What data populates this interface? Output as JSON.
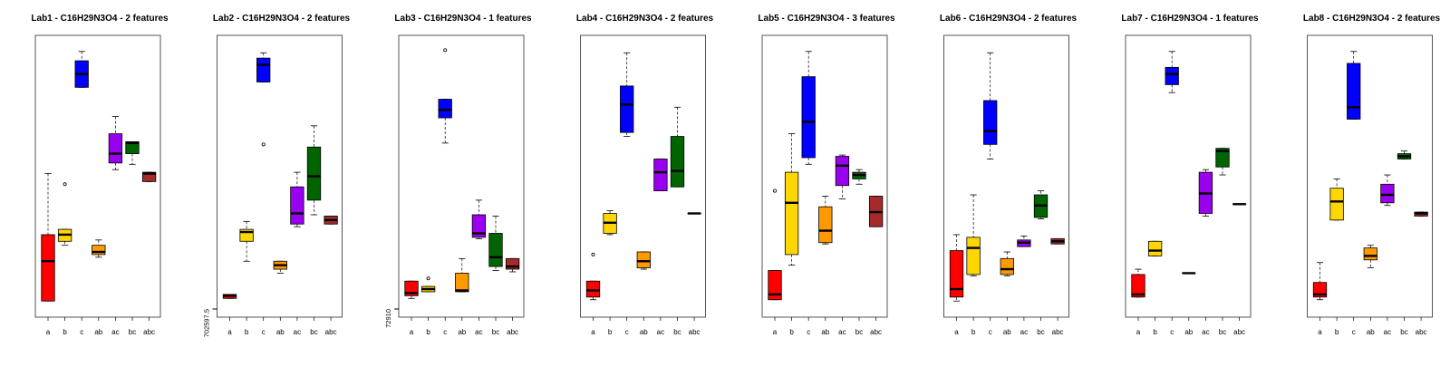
{
  "colors": {
    "a": "#ff0000",
    "b": "#ffd700",
    "c": "#0000ff",
    "ab": "#ff9900",
    "ac": "#9900ee",
    "bc": "#006400",
    "abc": "#a52a2a"
  },
  "chart_data": [
    {
      "type": "boxplot",
      "title": "Lab1 - C16H29N3O4 - 2 features",
      "categories": [
        "a",
        "b",
        "c",
        "ab",
        "ac",
        "bc",
        "abc"
      ],
      "ylim": [
        0,
        100
      ],
      "yticks": [],
      "boxes": [
        {
          "group": "a",
          "min": 3,
          "q1": 3,
          "median": 18,
          "q3": 28,
          "max": 51,
          "outliers": []
        },
        {
          "group": "b",
          "min": 24,
          "q1": 25.5,
          "median": 28,
          "q3": 30,
          "max": 30,
          "outliers": [
            47
          ]
        },
        {
          "group": "c",
          "min": 83.5,
          "q1": 83.5,
          "median": 88.5,
          "q3": 93.5,
          "max": 97,
          "outliers": []
        },
        {
          "group": "ab",
          "min": 19.5,
          "q1": 20.5,
          "median": 21.5,
          "q3": 24,
          "max": 26,
          "outliers": []
        },
        {
          "group": "ac",
          "min": 52.5,
          "q1": 55,
          "median": 58.5,
          "q3": 66,
          "max": 72.5,
          "outliers": []
        },
        {
          "group": "bc",
          "min": 54.5,
          "q1": 58.5,
          "median": 62.5,
          "q3": 63,
          "max": 63,
          "outliers": []
        },
        {
          "group": "abc",
          "min": 48,
          "q1": 48,
          "median": 51,
          "q3": 51.5,
          "max": 51.5,
          "outliers": []
        }
      ]
    },
    {
      "type": "boxplot",
      "title": "Lab2 - C16H29N3O4 - 2 features",
      "categories": [
        "a",
        "b",
        "c",
        "ab",
        "ac",
        "bc",
        "abc"
      ],
      "ylim": [
        702597.5,
        702697.5
      ],
      "yticks": [
        {
          "value": 702597.5,
          "label": "702597.5"
        }
      ],
      "boxes": [
        {
          "group": "a",
          "min": 702601.5,
          "q1": 702601.5,
          "median": 702602.5,
          "q3": 702603,
          "max": 702603,
          "outliers": []
        },
        {
          "group": "b",
          "min": 702615.5,
          "q1": 702623,
          "median": 702626.5,
          "q3": 702627.5,
          "max": 702630.5,
          "outliers": []
        },
        {
          "group": "c",
          "min": 702683,
          "q1": 702683,
          "median": 702689.5,
          "q3": 702692,
          "max": 702694,
          "outliers": [
            702659.5
          ]
        },
        {
          "group": "ab",
          "min": 702611,
          "q1": 702612.5,
          "median": 702614,
          "q3": 702615.5,
          "max": 702615.5,
          "outliers": []
        },
        {
          "group": "ac",
          "min": 702628.5,
          "q1": 702629.5,
          "median": 702633.5,
          "q3": 702643.5,
          "max": 702649,
          "outliers": []
        },
        {
          "group": "bc",
          "min": 702633,
          "q1": 702638.5,
          "median": 702647.5,
          "q3": 702658.5,
          "max": 702666.5,
          "outliers": []
        },
        {
          "group": "abc",
          "min": 702629.5,
          "q1": 702629.5,
          "median": 702631,
          "q3": 702632.5,
          "max": 702632.5,
          "outliers": []
        }
      ]
    },
    {
      "type": "boxplot",
      "title": "Lab3 - C16H29N3O4 - 1 features",
      "categories": [
        "a",
        "b",
        "c",
        "ab",
        "ac",
        "bc",
        "abc"
      ],
      "ylim": [
        72910,
        73010
      ],
      "yticks": [
        {
          "value": 72910,
          "label": "72910"
        }
      ],
      "boxes": [
        {
          "group": "a",
          "min": 72914,
          "q1": 72915,
          "median": 72916,
          "q3": 72920.5,
          "max": 72920.5,
          "outliers": []
        },
        {
          "group": "b",
          "min": 72916.5,
          "q1": 72916.5,
          "median": 72917.5,
          "q3": 72918.5,
          "max": 72918.5,
          "outliers": [
            72921.5
          ]
        },
        {
          "group": "c",
          "min": 72972.5,
          "q1": 72982,
          "median": 72985,
          "q3": 72989,
          "max": 72989,
          "outliers": [
            73007.5
          ]
        },
        {
          "group": "ab",
          "min": 72916.5,
          "q1": 72916.5,
          "median": 72917,
          "q3": 72923.5,
          "max": 72929,
          "outliers": []
        },
        {
          "group": "ac",
          "min": 72936.5,
          "q1": 72937,
          "median": 72938.5,
          "q3": 72945.5,
          "max": 72951,
          "outliers": []
        },
        {
          "group": "bc",
          "min": 72924.5,
          "q1": 72926,
          "median": 72929.5,
          "q3": 72938.5,
          "max": 72945,
          "outliers": []
        },
        {
          "group": "abc",
          "min": 72924,
          "q1": 72925,
          "median": 72926,
          "q3": 72929,
          "max": 72929,
          "outliers": []
        }
      ]
    },
    {
      "type": "boxplot",
      "title": "Lab4 - C16H29N3O4 - 2 features",
      "categories": [
        "a",
        "b",
        "c",
        "ab",
        "ac",
        "bc",
        "abc"
      ],
      "ylim": [
        0,
        100
      ],
      "yticks": [],
      "boxes": [
        {
          "group": "a",
          "min": 3.5,
          "q1": 4.5,
          "median": 7,
          "q3": 10.5,
          "max": 10.5,
          "outliers": [
            20.5
          ]
        },
        {
          "group": "b",
          "min": 28,
          "q1": 28.5,
          "median": 32.5,
          "q3": 36,
          "max": 37,
          "outliers": []
        },
        {
          "group": "c",
          "min": 65,
          "q1": 66.5,
          "median": 77,
          "q3": 84,
          "max": 96.5,
          "outliers": []
        },
        {
          "group": "ab",
          "min": 15,
          "q1": 15.5,
          "median": 18,
          "q3": 21.5,
          "max": 21.5,
          "outliers": []
        },
        {
          "group": "ac",
          "min": 44.5,
          "q1": 44.5,
          "median": 51.5,
          "q3": 56.5,
          "max": 56.5,
          "outliers": []
        },
        {
          "group": "bc",
          "min": 46,
          "q1": 46,
          "median": 52,
          "q3": 65,
          "max": 76,
          "outliers": []
        },
        {
          "group": "abc",
          "min": 36,
          "q1": 36,
          "median": 36,
          "q3": 36,
          "max": 36,
          "outliers": []
        }
      ]
    },
    {
      "type": "boxplot",
      "title": "Lab5 - C16H29N3O4 - 3 features",
      "categories": [
        "a",
        "b",
        "c",
        "ab",
        "ac",
        "bc",
        "abc"
      ],
      "ylim": [
        0,
        100
      ],
      "yticks": [],
      "boxes": [
        {
          "group": "a",
          "min": 3.5,
          "q1": 3.5,
          "median": 5.5,
          "q3": 14.5,
          "max": 14.5,
          "outliers": [
            44.5
          ]
        },
        {
          "group": "b",
          "min": 16.5,
          "q1": 20.5,
          "median": 40,
          "q3": 51.5,
          "max": 66,
          "outliers": []
        },
        {
          "group": "c",
          "min": 54.5,
          "q1": 57,
          "median": 70.5,
          "q3": 87.5,
          "max": 97,
          "outliers": []
        },
        {
          "group": "ab",
          "min": 24.5,
          "q1": 25,
          "median": 29.5,
          "q3": 38.5,
          "max": 42.5,
          "outliers": []
        },
        {
          "group": "ac",
          "min": 41.5,
          "q1": 46.5,
          "median": 54,
          "q3": 57.5,
          "max": 58,
          "outliers": []
        },
        {
          "group": "bc",
          "min": 47,
          "q1": 49,
          "median": 50.5,
          "q3": 51.5,
          "max": 52.5,
          "outliers": []
        },
        {
          "group": "abc",
          "min": 31,
          "q1": 31,
          "median": 36.5,
          "q3": 42.5,
          "max": 42.5,
          "outliers": []
        }
      ]
    },
    {
      "type": "boxplot",
      "title": "Lab6 - C16H29N3O4 - 2 features",
      "categories": [
        "a",
        "b",
        "c",
        "ab",
        "ac",
        "bc",
        "abc"
      ],
      "ylim": [
        0,
        100
      ],
      "yticks": [],
      "boxes": [
        {
          "group": "a",
          "min": 3,
          "q1": 4.5,
          "median": 7.5,
          "q3": 22,
          "max": 28,
          "outliers": []
        },
        {
          "group": "b",
          "min": 12.5,
          "q1": 13,
          "median": 23,
          "q3": 27,
          "max": 43,
          "outliers": []
        },
        {
          "group": "c",
          "min": 56.5,
          "q1": 62,
          "median": 67,
          "q3": 78.5,
          "max": 96.5,
          "outliers": []
        },
        {
          "group": "ab",
          "min": 12.5,
          "q1": 13,
          "median": 15,
          "q3": 19,
          "max": 21.5,
          "outliers": []
        },
        {
          "group": "ac",
          "min": 23.5,
          "q1": 23.5,
          "median": 25,
          "q3": 26,
          "max": 27.5,
          "outliers": []
        },
        {
          "group": "bc",
          "min": 34,
          "q1": 34.5,
          "median": 39,
          "q3": 43,
          "max": 44.5,
          "outliers": []
        },
        {
          "group": "abc",
          "min": 24.5,
          "q1": 24.5,
          "median": 25.5,
          "q3": 26.5,
          "max": 26.5,
          "outliers": []
        }
      ]
    },
    {
      "type": "boxplot",
      "title": "Lab7 - C16H29N3O4 - 1 features",
      "categories": [
        "a",
        "b",
        "c",
        "ab",
        "ac",
        "bc",
        "abc"
      ],
      "ylim": [
        0,
        100
      ],
      "yticks": [],
      "boxes": [
        {
          "group": "a",
          "min": 4.5,
          "q1": 4.5,
          "median": 5.5,
          "q3": 13,
          "max": 15,
          "outliers": []
        },
        {
          "group": "b",
          "min": 20,
          "q1": 20,
          "median": 22,
          "q3": 25.5,
          "max": 25.5,
          "outliers": []
        },
        {
          "group": "c",
          "min": 81.5,
          "q1": 84.5,
          "median": 88.5,
          "q3": 91,
          "max": 97,
          "outliers": []
        },
        {
          "group": "ab",
          "min": 13.5,
          "q1": 13.5,
          "median": 13.5,
          "q3": 13.5,
          "max": 13.5,
          "outliers": []
        },
        {
          "group": "ac",
          "min": 35,
          "q1": 36,
          "median": 43.5,
          "q3": 51.5,
          "max": 52.5,
          "outliers": []
        },
        {
          "group": "bc",
          "min": 50.5,
          "q1": 53.5,
          "median": 59.5,
          "q3": 60.5,
          "max": 60.5,
          "outliers": []
        },
        {
          "group": "abc",
          "min": 39.5,
          "q1": 39.5,
          "median": 39.5,
          "q3": 39.5,
          "max": 39.5,
          "outliers": []
        }
      ]
    },
    {
      "type": "boxplot",
      "title": "Lab8 - C16H29N3O4 - 2 features",
      "categories": [
        "a",
        "b",
        "c",
        "ab",
        "ac",
        "bc",
        "abc"
      ],
      "ylim": [
        0,
        100
      ],
      "yticks": [],
      "boxes": [
        {
          "group": "a",
          "min": 3.5,
          "q1": 4.5,
          "median": 5.5,
          "q3": 10,
          "max": 17.5,
          "outliers": []
        },
        {
          "group": "b",
          "min": 33.5,
          "q1": 33.5,
          "median": 40.5,
          "q3": 45.5,
          "max": 49,
          "outliers": []
        },
        {
          "group": "c",
          "min": 71.5,
          "q1": 71.5,
          "median": 76,
          "q3": 92.5,
          "max": 97,
          "outliers": []
        },
        {
          "group": "ab",
          "min": 15.5,
          "q1": 18.5,
          "median": 20,
          "q3": 23,
          "max": 24,
          "outliers": []
        },
        {
          "group": "ac",
          "min": 39,
          "q1": 40,
          "median": 43,
          "q3": 47,
          "max": 50.5,
          "outliers": []
        },
        {
          "group": "bc",
          "min": 56.5,
          "q1": 56.5,
          "median": 57.5,
          "q3": 58.5,
          "max": 59.5,
          "outliers": []
        },
        {
          "group": "abc",
          "min": 35,
          "q1": 35,
          "median": 36,
          "q3": 36.5,
          "max": 36.5,
          "outliers": []
        }
      ]
    }
  ]
}
